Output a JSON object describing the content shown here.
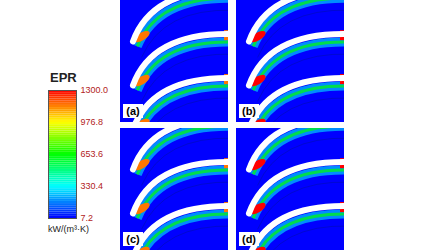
{
  "chart_data": {
    "type": "heatmap",
    "colorbar": {
      "title": "EPR",
      "unit": "kW/(m³·K)",
      "lim": [
        7.2,
        1300
      ],
      "ticks": [
        {
          "value": 1300,
          "label": "1300.0"
        },
        976.8,
        653.6,
        330.4,
        7.2
      ]
    },
    "panels": [
      {
        "label": "(a)",
        "peak": 1150
      },
      {
        "label": "(b)",
        "peak": 1300
      },
      {
        "label": "(c)",
        "peak": 1150
      },
      {
        "label": "(d)",
        "peak": 1300
      }
    ]
  }
}
